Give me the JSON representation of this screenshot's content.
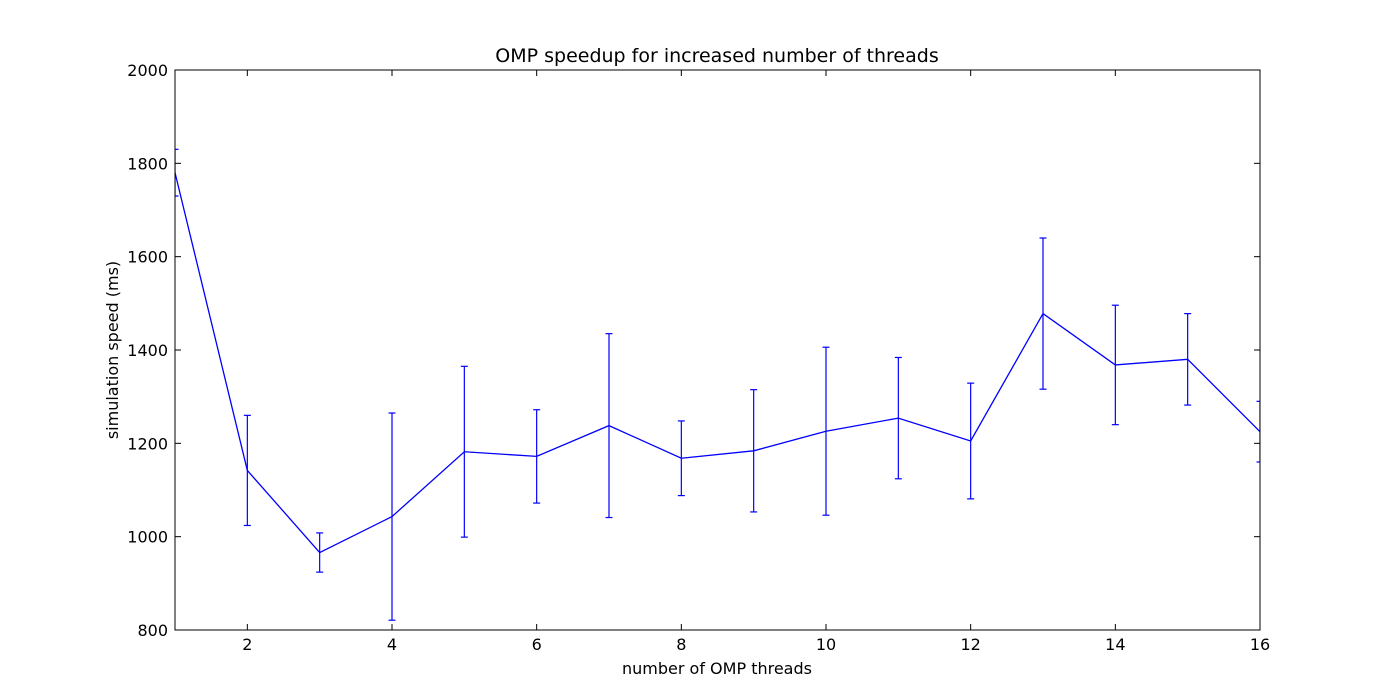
{
  "chart_data": {
    "type": "line",
    "title": "OMP speedup for increased number of threads",
    "xlabel": "number of OMP threads",
    "ylabel": "simulation speed (ms)",
    "xlim": [
      1,
      16
    ],
    "ylim": [
      800,
      2000
    ],
    "x_ticks": [
      2,
      4,
      6,
      8,
      10,
      12,
      14,
      16
    ],
    "y_ticks": [
      800,
      1000,
      1200,
      1400,
      1600,
      1800,
      2000
    ],
    "grid": false,
    "error_bars": true,
    "series": [
      {
        "color": "#0000ff",
        "x": [
          1,
          2,
          3,
          4,
          5,
          6,
          7,
          8,
          9,
          10,
          11,
          12,
          13,
          14,
          15,
          16
        ],
        "values": [
          1780,
          1142,
          966,
          1043,
          1182,
          1172,
          1238,
          1168,
          1184,
          1226,
          1254,
          1205,
          1478,
          1368,
          1380,
          1225
        ],
        "error": [
          50,
          118,
          42,
          222,
          183,
          100,
          197,
          80,
          131,
          180,
          130,
          124,
          162,
          128,
          98,
          65
        ]
      }
    ]
  }
}
